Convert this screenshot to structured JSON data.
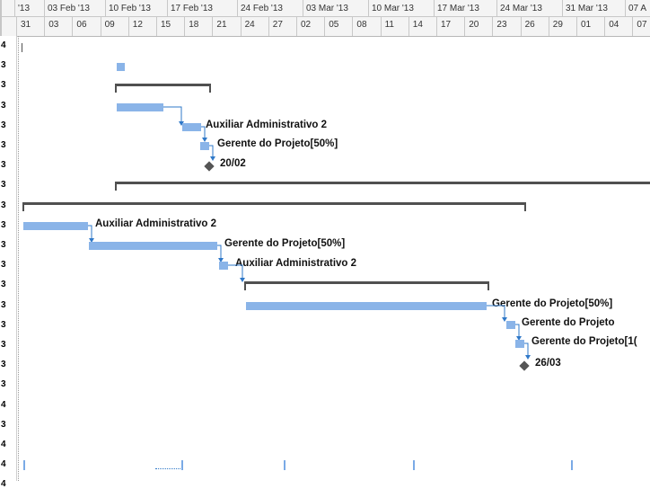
{
  "timescale": {
    "weeks": [
      "'13",
      "03 Feb '13",
      "10 Feb '13",
      "17 Feb '13",
      "24 Feb '13",
      "03 Mar '13",
      "10 Mar '13",
      "17 Mar '13",
      "24 Mar '13",
      "31 Mar '13",
      "07 A"
    ],
    "days": [
      "31",
      "03",
      "06",
      "09",
      "12",
      "15",
      "18",
      "21",
      "24",
      "27",
      "02",
      "05",
      "08",
      "11",
      "14",
      "17",
      "20",
      "23",
      "26",
      "29",
      "01",
      "04",
      "07"
    ]
  },
  "row_markers": [
    "4",
    "3",
    "3",
    "3",
    "3",
    "3",
    "3",
    "3",
    "3",
    "3",
    "3",
    "3",
    "3",
    "3",
    "3",
    "3",
    "3",
    "3",
    "4",
    "3",
    "4",
    "4",
    "4"
  ],
  "labels": {
    "task_a": "Auxiliar Administrativo 2",
    "task_b": "Gerente do Projeto[50%]",
    "milestone_1": "20/02",
    "task_c": "Auxiliar Administrativo 2",
    "task_d": "Gerente do Projeto[50%]",
    "task_e": "Auxiliar Administrativo 2",
    "task_f": "Gerente do Projeto[50%]",
    "task_g": "Gerente do Projeto",
    "task_h": "Gerente do Projeto[1(",
    "milestone_2": "26/03"
  },
  "colors": {
    "task_bar": "#8ab4e8",
    "summary_bar": "#505050",
    "milestone": "#555555",
    "connector": "#2f78c8"
  }
}
